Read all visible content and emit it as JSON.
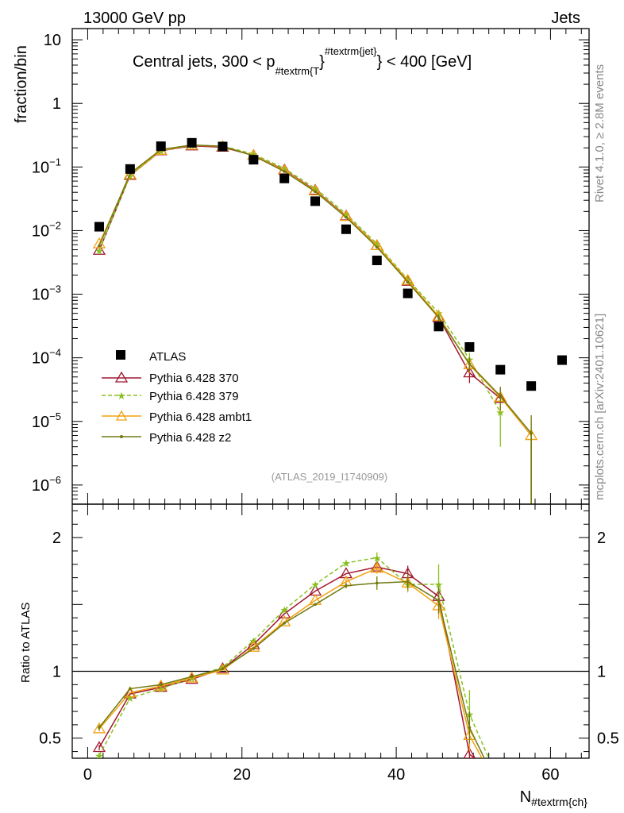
{
  "header": {
    "left": "13000 GeV pp",
    "right": "Jets",
    "side_rivet": "Rivet 4.1.0, ≥ 2.8M events",
    "side_mcplots": "mcplots.cern.ch [arXiv:2401.10621]"
  },
  "chart_data": [
    {
      "type": "scatter",
      "panel": "main",
      "title_parts": {
        "a": "Central jets, 300 < p",
        "sub": "#textrm{T",
        "close": "}",
        "sup": "#textrm{jet}",
        "b": "} < 400 [GeV]"
      },
      "ylabel": "fraction/bin",
      "yscale": "log",
      "ylim": [
        5e-07,
        15
      ],
      "xlim": [
        -2,
        65
      ],
      "ytick_labels": [
        {
          "v": 10,
          "t": "10"
        },
        {
          "v": 1,
          "t": "1"
        },
        {
          "v": 0.1,
          "b": "10",
          "e": "−1"
        },
        {
          "v": 0.01,
          "b": "10",
          "e": "−2"
        },
        {
          "v": 0.001,
          "b": "10",
          "e": "−3"
        },
        {
          "v": 0.0001,
          "b": "10",
          "e": "−4"
        },
        {
          "v": 1e-05,
          "b": "10",
          "e": "−5"
        },
        {
          "v": 1e-06,
          "b": "10",
          "e": "−6"
        }
      ],
      "watermark": "(ATLAS_2019_I1740909)",
      "legend_position": "lower-left",
      "x": [
        1.5,
        5.5,
        9.5,
        13.5,
        17.5,
        21.5,
        25.5,
        29.5,
        33.5,
        37.5,
        41.5,
        45.5,
        49.5,
        53.5,
        57.5,
        61.5
      ],
      "data": {
        "name": "ATLAS",
        "values": [
          0.0115,
          0.093,
          0.212,
          0.24,
          0.21,
          0.13,
          0.066,
          0.029,
          0.0105,
          0.0034,
          0.00103,
          0.00031,
          0.000148,
          6.5e-05,
          3.6e-05,
          9.2e-05
        ]
      },
      "series": [
        {
          "name": "Pythia 6.428 370",
          "color": "#a01830",
          "dash": "",
          "marker": "triangle-open",
          "values": [
            0.0049,
            0.074,
            0.18,
            0.215,
            0.205,
            0.152,
            0.09,
            0.043,
            0.017,
            0.0058,
            0.0016,
            0.00043,
            5.8e-05,
            2.3e-05
          ],
          "err": [
            0,
            0,
            0,
            0,
            0,
            0,
            0,
            0,
            0,
            0,
            0,
            5e-05,
            1.8e-05,
            1e-05
          ]
        },
        {
          "name": "Pythia 6.428 379",
          "color": "#88c020",
          "dash": "5,3",
          "marker": "star",
          "values": [
            0.0049,
            0.073,
            0.18,
            0.22,
            0.213,
            0.16,
            0.095,
            0.046,
            0.0183,
            0.0062,
            0.0017,
            0.00051,
            9.5e-05,
            1.4e-05
          ],
          "err": [
            0,
            0,
            0,
            0,
            0,
            0,
            0,
            0,
            0,
            0,
            0,
            5e-05,
            2.5e-05,
            1e-05
          ]
        },
        {
          "name": "Pythia 6.428 ambt1",
          "color": "#f0a010",
          "dash": "",
          "marker": "triangle-open",
          "values": [
            0.0062,
            0.076,
            0.183,
            0.22,
            0.21,
            0.152,
            0.088,
            0.042,
            0.0167,
            0.0058,
            0.00165,
            0.00045,
            7.8e-05,
            2.4e-05,
            6e-06
          ],
          "err": [
            0,
            0,
            0,
            0,
            0,
            0,
            0,
            0,
            0,
            0,
            0,
            5e-05,
            2e-05,
            1e-05,
            5e-06
          ]
        },
        {
          "name": "Pythia 6.428 z2",
          "color": "#707a10",
          "dash": "",
          "marker": "dot",
          "values": [
            0.0058,
            0.079,
            0.188,
            0.222,
            0.212,
            0.15,
            0.085,
            0.041,
            0.0162,
            0.0055,
            0.00155,
            0.00043,
            8e-05,
            2.5e-05,
            6.5e-06
          ],
          "err": [
            0,
            0,
            0,
            0,
            0,
            0,
            0,
            0,
            0,
            0,
            0,
            5e-05,
            2e-05,
            1e-05,
            6e-06
          ]
        }
      ]
    },
    {
      "type": "line",
      "panel": "ratio",
      "ylabel": "Ratio to ATLAS",
      "xlabel_parts": {
        "base": "N",
        "sub": "#textrm{ch}"
      },
      "ylim": [
        0.35,
        2.25
      ],
      "xlim": [
        -2,
        65
      ],
      "ytick_labels": [
        {
          "v": 2,
          "t": "2"
        },
        {
          "v": 1,
          "t": "1"
        },
        {
          "v": 0.5,
          "t": "0.5"
        }
      ],
      "xtick_labels": [
        {
          "v": 0,
          "t": "0"
        },
        {
          "v": 20,
          "t": "20"
        },
        {
          "v": 40,
          "t": "40"
        },
        {
          "v": 60,
          "t": "60"
        }
      ],
      "x": [
        1.5,
        5.5,
        9.5,
        13.5,
        17.5,
        21.5,
        25.5,
        29.5,
        33.5,
        37.5,
        41.5,
        45.5,
        49.5,
        53.5
      ],
      "series": [
        {
          "name": "Pythia 6.428 370",
          "values": [
            0.43,
            0.83,
            0.88,
            0.94,
            1.02,
            1.2,
            1.43,
            1.6,
            1.73,
            1.78,
            1.73,
            1.56,
            0.38,
            0.2
          ],
          "err": [
            0.02,
            0,
            0,
            0,
            0,
            0,
            0,
            0,
            0,
            0.03,
            0.06,
            0.06,
            0.08,
            0
          ]
        },
        {
          "name": "Pythia 6.428 379",
          "values": [
            0.37,
            0.8,
            0.87,
            0.95,
            1.03,
            1.23,
            1.46,
            1.65,
            1.81,
            1.85,
            1.65,
            1.65,
            0.68,
            0.15
          ],
          "err": [
            0.02,
            0,
            0,
            0,
            0,
            0,
            0,
            0,
            0.02,
            0.04,
            0.06,
            0.15,
            0.18,
            0
          ]
        },
        {
          "name": "Pythia 6.428 ambt1",
          "values": [
            0.57,
            0.84,
            0.89,
            0.95,
            1.01,
            1.18,
            1.37,
            1.53,
            1.67,
            1.77,
            1.66,
            1.49,
            0.52,
            0.1
          ],
          "err": [
            0.02,
            0,
            0,
            0,
            0,
            0,
            0,
            0,
            0.02,
            0.04,
            0.06,
            0.1,
            0.12,
            0
          ]
        },
        {
          "name": "Pythia 6.428 z2",
          "values": [
            0.58,
            0.87,
            0.9,
            0.96,
            1.02,
            1.17,
            1.36,
            1.5,
            1.64,
            1.66,
            1.67,
            1.53,
            0.58,
            0.1
          ],
          "err": [
            0.02,
            0,
            0,
            0,
            0,
            0,
            0,
            0,
            0.02,
            0.05,
            0.06,
            0.1,
            0.12,
            0
          ]
        }
      ]
    }
  ]
}
